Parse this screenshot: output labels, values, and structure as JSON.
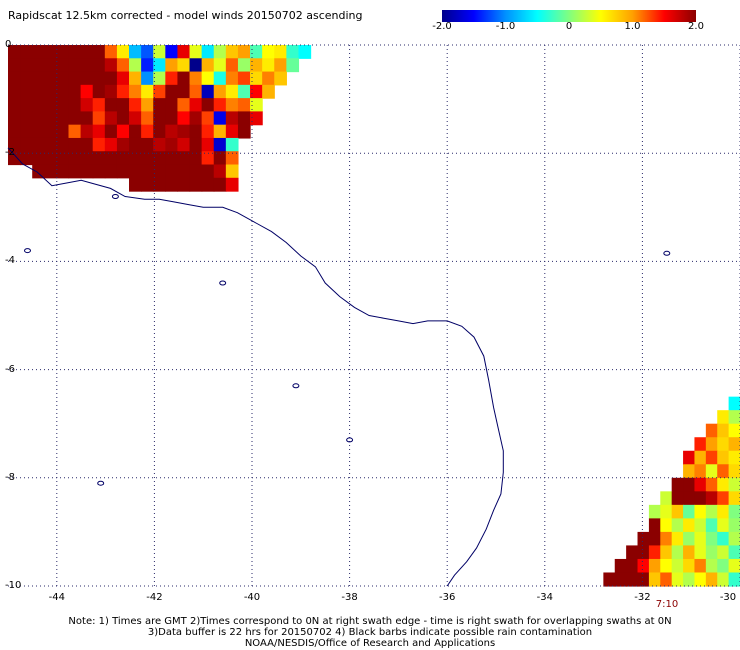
{
  "title": "Rapidscat 12.5km corrected - model winds 20150702 ascending",
  "colorbar": {
    "ticks": [
      "-2.0",
      "-1.0",
      "0",
      "1.0",
      "2.0"
    ],
    "tick_values": [
      -2,
      -1,
      0,
      1,
      2
    ],
    "colors": [
      "#00008b",
      "#0000ff",
      "#0090ff",
      "#00ffff",
      "#80ff80",
      "#ffff00",
      "#ffa000",
      "#ff0000",
      "#8b0000"
    ]
  },
  "axes": {
    "x_ticks": [
      "-44",
      "-42",
      "-40",
      "-38",
      "-36",
      "-34",
      "-32",
      "-30"
    ],
    "x_values": [
      -44,
      -42,
      -40,
      -38,
      -36,
      -34,
      -32,
      -30
    ],
    "y_ticks": [
      "0",
      "-2",
      "-4",
      "-6",
      "-8",
      "-10"
    ],
    "y_values": [
      0,
      -2,
      -4,
      -6,
      -8,
      -10
    ],
    "lon_range": [
      -45,
      -30
    ],
    "lat_range": [
      -10,
      0
    ],
    "grid": "dotted"
  },
  "time_label": "7:10",
  "notes": [
    "Note: 1) Times are GMT 2)Times correspond to 0N at right swath edge - time is right swath for overlapping swaths at 0N",
    "3)Data buffer is 22 hrs for 20150702 4) Black barbs indicate possible rain contamination",
    "NOAA/NESDIS/Office of Research and Applications"
  ],
  "coastline": [
    [
      -45,
      -1.9
    ],
    [
      -44.7,
      -2.2
    ],
    [
      -44.4,
      -2.35
    ],
    [
      -44.1,
      -2.6
    ],
    [
      -43.8,
      -2.55
    ],
    [
      -43.5,
      -2.5
    ],
    [
      -43.3,
      -2.55
    ],
    [
      -42.9,
      -2.65
    ],
    [
      -42.6,
      -2.8
    ],
    [
      -42.2,
      -2.85
    ],
    [
      -41.9,
      -2.85
    ],
    [
      -41.6,
      -2.9
    ],
    [
      -41.3,
      -2.95
    ],
    [
      -41.0,
      -3.0
    ],
    [
      -40.6,
      -3.0
    ],
    [
      -40.3,
      -3.1
    ],
    [
      -39.9,
      -3.3
    ],
    [
      -39.6,
      -3.45
    ],
    [
      -39.3,
      -3.65
    ],
    [
      -39.0,
      -3.9
    ],
    [
      -38.7,
      -4.1
    ],
    [
      -38.5,
      -4.4
    ],
    [
      -38.2,
      -4.65
    ],
    [
      -37.9,
      -4.85
    ],
    [
      -37.6,
      -5.0
    ],
    [
      -37.3,
      -5.05
    ],
    [
      -37.0,
      -5.1
    ],
    [
      -36.7,
      -5.15
    ],
    [
      -36.4,
      -5.1
    ],
    [
      -36.0,
      -5.1
    ],
    [
      -35.7,
      -5.2
    ],
    [
      -35.45,
      -5.4
    ],
    [
      -35.25,
      -5.75
    ],
    [
      -35.15,
      -6.2
    ],
    [
      -35.05,
      -6.7
    ],
    [
      -34.95,
      -7.1
    ],
    [
      -34.85,
      -7.5
    ],
    [
      -34.85,
      -7.9
    ],
    [
      -34.9,
      -8.3
    ],
    [
      -35.05,
      -8.6
    ],
    [
      -35.2,
      -8.95
    ],
    [
      -35.4,
      -9.3
    ],
    [
      -35.6,
      -9.55
    ],
    [
      -35.85,
      -9.8
    ],
    [
      -36.0,
      -10.0
    ]
  ],
  "islands": [
    [
      -40.6,
      -4.4
    ],
    [
      -39.1,
      -6.3
    ],
    [
      -38.0,
      -7.3
    ],
    [
      -43.1,
      -8.1
    ],
    [
      -44.6,
      -3.8
    ],
    [
      -31.5,
      -3.85
    ],
    [
      -42.8,
      -2.8
    ]
  ],
  "swaths": [
    {
      "region": "north-west",
      "lon": [
        -45,
        -38.8
      ],
      "lat": [
        -2.7,
        0
      ],
      "values": [
        [
          2,
          2,
          2,
          2,
          2,
          2,
          2,
          2,
          1.2,
          0.6,
          -0.8,
          -1.2,
          0.3,
          -1.5,
          1.6,
          0.4,
          -0.6,
          0.2,
          0.8,
          1.0,
          -0.2,
          0.5,
          0.6,
          -0.3,
          -0.5
        ],
        [
          2,
          2,
          2,
          2,
          2,
          2,
          2,
          2,
          1.8,
          1.2,
          0.2,
          -1.4,
          -0.6,
          1.0,
          0.7,
          -2.0,
          0.9,
          0.4,
          1.2,
          0.1,
          0.9,
          0.6,
          1.0,
          -0.1,
          null
        ],
        [
          2,
          2,
          2,
          2,
          2,
          2,
          2,
          2,
          2,
          1.6,
          0.9,
          -1.0,
          0.2,
          1.4,
          2,
          1.1,
          0.5,
          -0.4,
          1.1,
          1.3,
          0.7,
          1.1,
          0.8,
          null,
          null
        ],
        [
          2,
          2,
          2,
          2,
          2,
          2,
          1.5,
          2,
          1.9,
          1.4,
          1.1,
          0.6,
          1.3,
          2,
          2,
          1.2,
          -1.8,
          1.0,
          0.6,
          -0.2,
          1.5,
          0.9,
          null,
          null,
          null
        ],
        [
          2,
          2,
          2,
          2,
          2,
          2,
          1.7,
          1.4,
          2,
          2,
          1.4,
          1.0,
          2,
          2,
          1.2,
          1.6,
          2,
          1.4,
          1.1,
          1.2,
          0.4,
          null,
          null,
          null,
          null
        ],
        [
          2,
          2,
          2,
          2,
          2,
          2,
          2,
          1.3,
          1.8,
          2,
          1.7,
          1.2,
          2,
          2,
          1.5,
          1.9,
          1.3,
          -1.6,
          1.8,
          2,
          1.6,
          null,
          null,
          null,
          null
        ],
        [
          2,
          2,
          2,
          2,
          2,
          1.2,
          1.8,
          1.6,
          2,
          1.5,
          2,
          1.4,
          2,
          1.8,
          1.9,
          2,
          1.4,
          0.9,
          1.6,
          2,
          null,
          null,
          null,
          null,
          null
        ],
        [
          2,
          2,
          2,
          2,
          2,
          2,
          2,
          1.4,
          1.6,
          1.9,
          2,
          2,
          1.8,
          1.9,
          1.7,
          2,
          1.6,
          -1.7,
          -0.3,
          null,
          null,
          null,
          null,
          null,
          null
        ],
        [
          2,
          2,
          2,
          2,
          2,
          2,
          2,
          2,
          2,
          2,
          2,
          2,
          2,
          2,
          2,
          2,
          1.4,
          2,
          1.2,
          null,
          null,
          null,
          null,
          null,
          null
        ],
        [
          null,
          null,
          2,
          2,
          2,
          2,
          2,
          2,
          2,
          2,
          2,
          2,
          2,
          2,
          2,
          2,
          2,
          1.8,
          0.8,
          null,
          null,
          null,
          null,
          null,
          null
        ],
        [
          null,
          null,
          null,
          null,
          null,
          null,
          null,
          null,
          null,
          null,
          2,
          2,
          2,
          2,
          2,
          2,
          2,
          2,
          1.6,
          null,
          null,
          null,
          null,
          null,
          null
        ]
      ]
    },
    {
      "region": "south-east",
      "lon": [
        -32.8,
        -30
      ],
      "lat": [
        -10,
        -6.5
      ],
      "values": [
        [
          null,
          null,
          null,
          null,
          null,
          null,
          null,
          null,
          null,
          null,
          null,
          -0.5
        ],
        [
          null,
          null,
          null,
          null,
          null,
          null,
          null,
          null,
          null,
          null,
          0.6,
          0.2
        ],
        [
          null,
          null,
          null,
          null,
          null,
          null,
          null,
          null,
          null,
          1.2,
          0.8,
          0.5
        ],
        [
          null,
          null,
          null,
          null,
          null,
          null,
          null,
          null,
          1.4,
          1.0,
          0.7,
          0.9
        ],
        [
          null,
          null,
          null,
          null,
          null,
          null,
          null,
          1.6,
          0.9,
          1.3,
          0.8,
          0.6
        ],
        [
          null,
          null,
          null,
          null,
          null,
          null,
          null,
          0.9,
          1.1,
          0.4,
          1.2,
          0.7
        ],
        [
          null,
          null,
          null,
          null,
          null,
          null,
          2,
          2,
          1.6,
          1.2,
          0.6,
          0.3
        ],
        [
          null,
          null,
          null,
          null,
          null,
          0.3,
          2,
          2,
          2,
          1.8,
          1.3,
          0.7
        ],
        [
          null,
          null,
          null,
          null,
          0.2,
          0.4,
          0.8,
          -0.1,
          0.5,
          0.2,
          0.6,
          0.0
        ],
        [
          null,
          null,
          null,
          null,
          2,
          0.5,
          0.2,
          0.6,
          0.3,
          -0.2,
          0.4,
          0.1
        ],
        [
          null,
          null,
          null,
          2,
          2,
          1.1,
          0.6,
          0.1,
          0.4,
          0.0,
          -0.3,
          0.2
        ],
        [
          null,
          null,
          2,
          2,
          1.4,
          0.8,
          0.2,
          0.9,
          0.4,
          0.1,
          0.3,
          -0.2
        ],
        [
          null,
          2,
          2,
          1.5,
          1.0,
          0.5,
          0.3,
          0.7,
          1.1,
          0.2,
          0.0,
          0.4
        ],
        [
          2,
          2,
          2,
          2,
          0.8,
          1.2,
          0.4,
          0.2,
          0.5,
          0.9,
          0.3,
          -0.3
        ]
      ]
    }
  ]
}
